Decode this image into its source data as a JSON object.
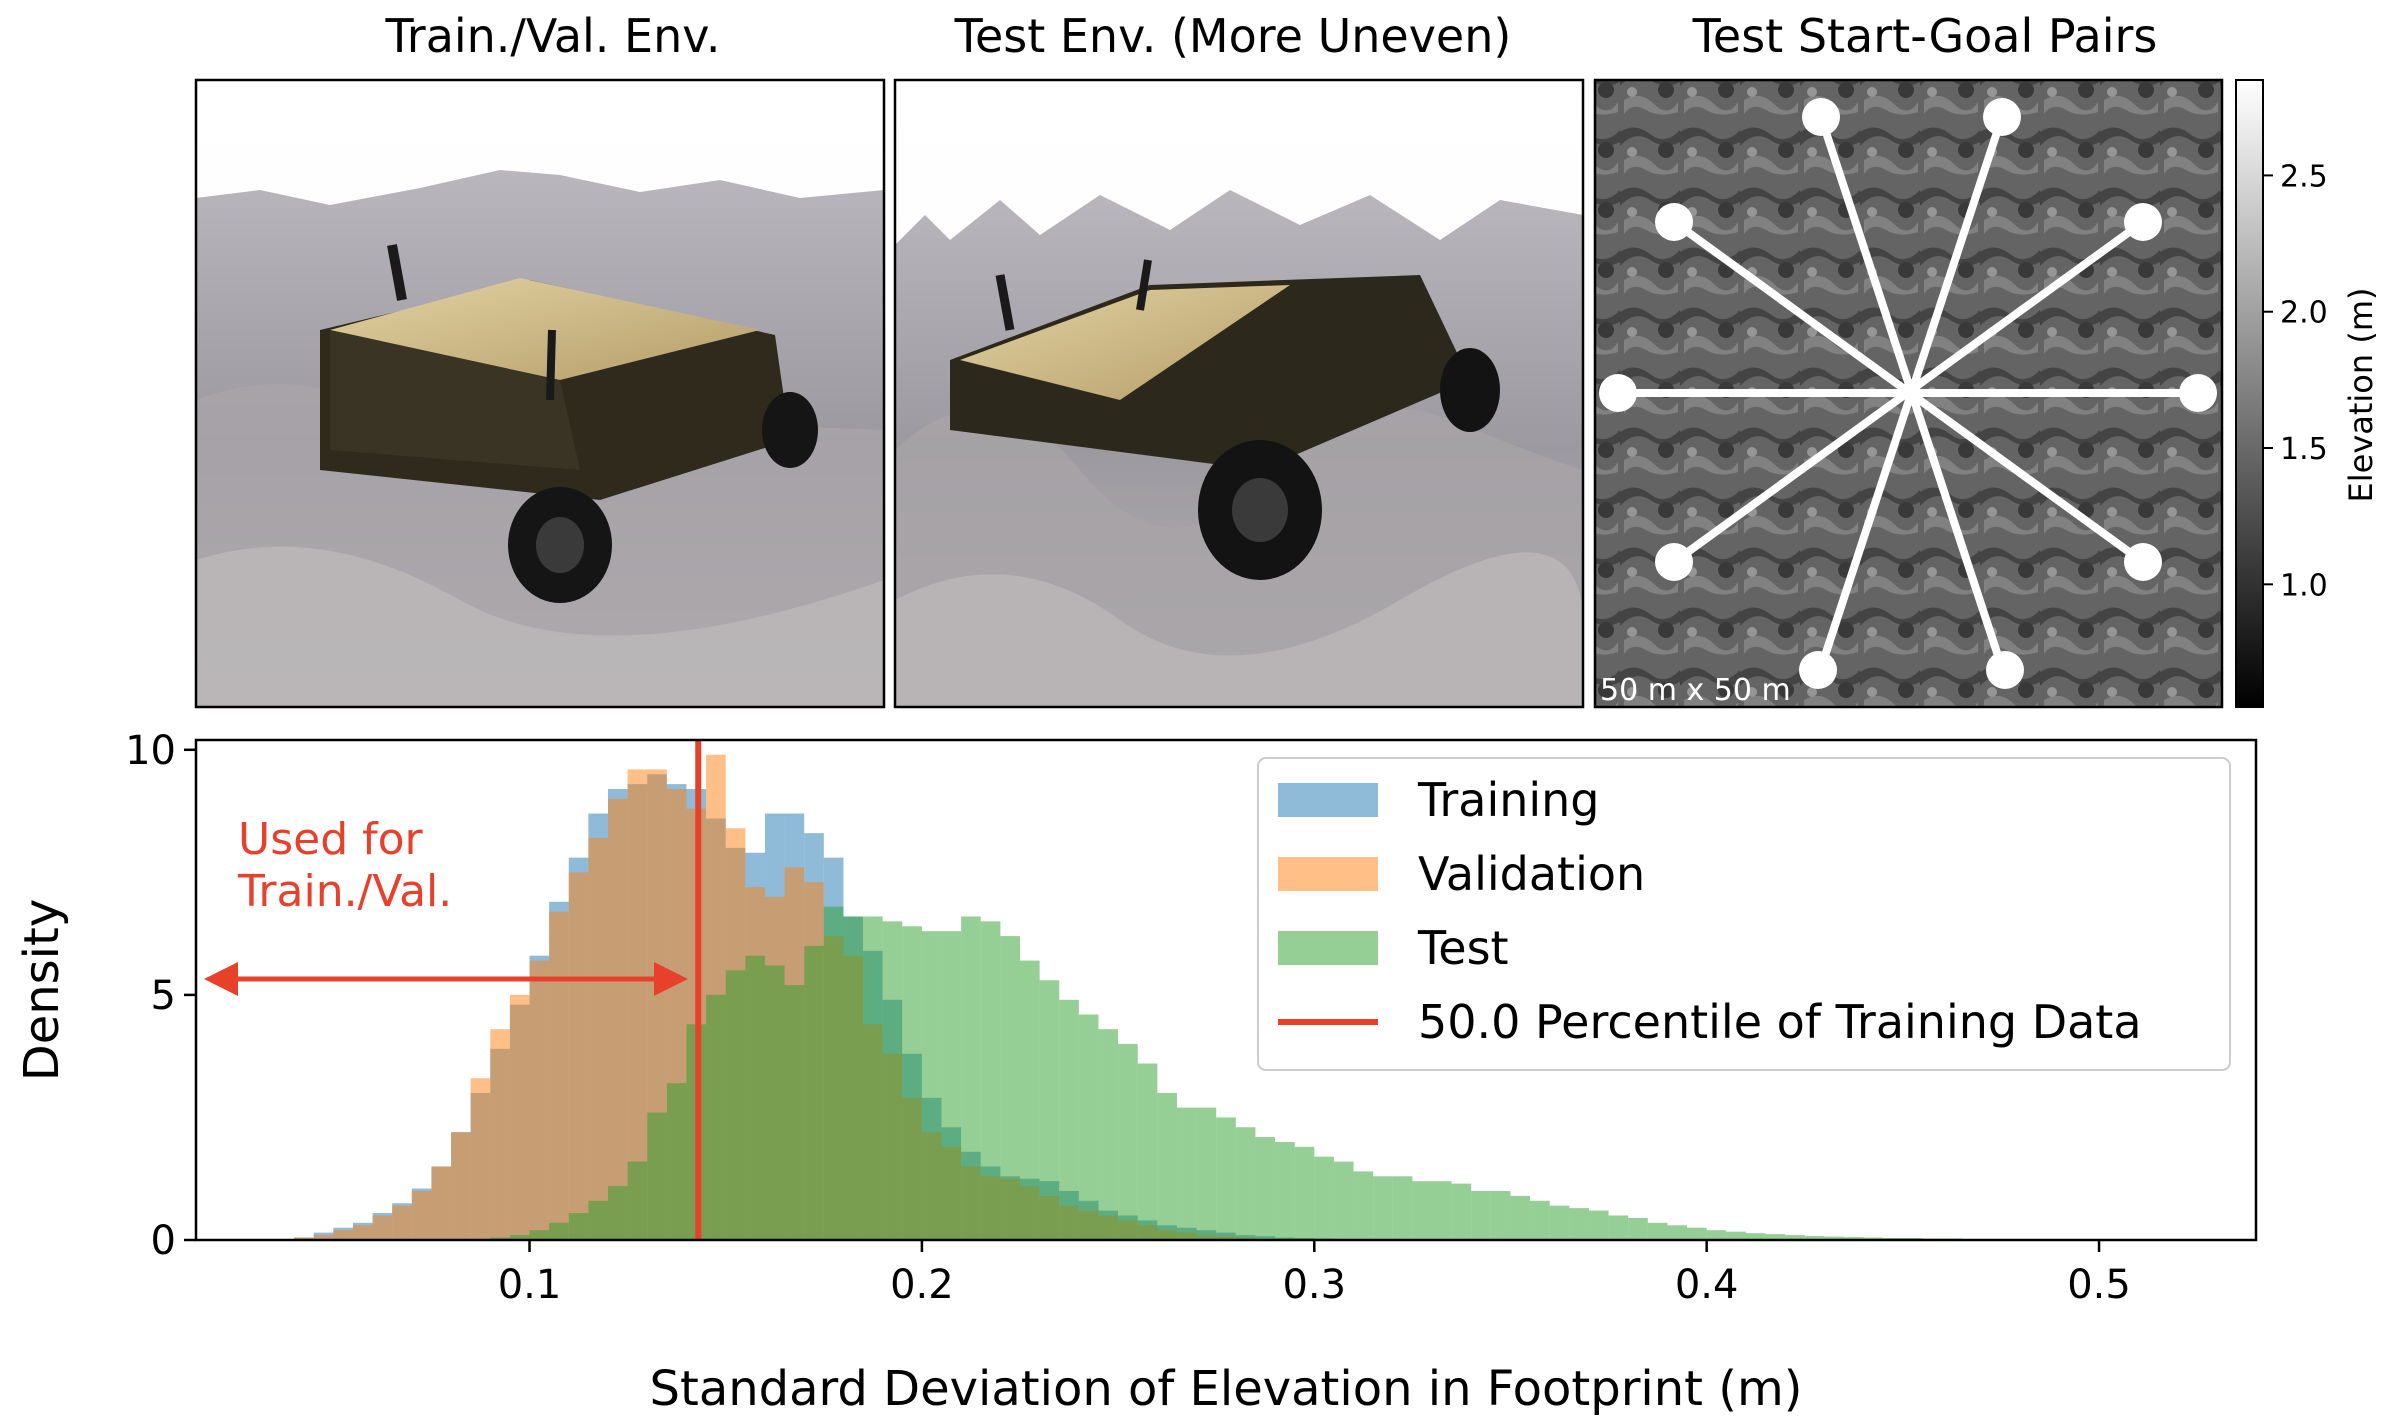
{
  "panels": {
    "train_env_title": "Train./Val. Env.",
    "test_env_title": "Test Env. (More Uneven)",
    "pairs_title": "Test Start-Goal Pairs",
    "map_scale_label": "50 m x 50 m",
    "colorbar_label": "Elevation (m)",
    "colorbar_ticks": [
      "1.0",
      "1.5",
      "2.0",
      "2.5"
    ],
    "colorbar_range": [
      0.55,
      2.85
    ]
  },
  "annotation": {
    "line1": "Used for",
    "line2": "Train./Val.",
    "color": "#e8412b"
  },
  "chart_data": {
    "type": "bar",
    "xlabel": "Standard Deviation of Elevation in Footprint (m)",
    "ylabel": "Density",
    "xlim": [
      0.015,
      0.54
    ],
    "ylim": [
      0,
      10.2
    ],
    "xticks": [
      "0.1",
      "0.2",
      "0.3",
      "0.4",
      "0.5"
    ],
    "yticks": [
      "0",
      "5",
      "10"
    ],
    "bin_width": 0.005,
    "legend_position": "upper right",
    "percentile_line": {
      "name": "50.0 Percentile of Training Data",
      "x": 0.143,
      "color": "#e8412b"
    },
    "series": [
      {
        "name": "Training",
        "color": "#1f77b4",
        "x_start": 0.04,
        "values": [
          0.05,
          0.15,
          0.25,
          0.35,
          0.55,
          0.75,
          1.05,
          1.5,
          2.2,
          3.0,
          3.9,
          4.8,
          5.8,
          6.9,
          7.8,
          8.7,
          9.2,
          9.3,
          9.5,
          9.3,
          9.2,
          8.6,
          8.0,
          7.9,
          8.7,
          8.7,
          8.3,
          7.8,
          6.6,
          5.9,
          4.9,
          3.8,
          2.9,
          2.3,
          1.8,
          1.5,
          1.3,
          1.25,
          1.2,
          1.0,
          0.8,
          0.6,
          0.5,
          0.4,
          0.3,
          0.25,
          0.2,
          0.15,
          0.1,
          0.08,
          0.05,
          0.04,
          0.03,
          0.02,
          0.01,
          0.01
        ]
      },
      {
        "name": "Validation",
        "color": "#ff7f0e",
        "x_start": 0.04,
        "values": [
          0.05,
          0.1,
          0.2,
          0.3,
          0.5,
          0.7,
          1.0,
          1.5,
          2.2,
          3.3,
          4.3,
          5.0,
          5.7,
          6.7,
          7.5,
          8.2,
          9.0,
          9.6,
          9.6,
          9.2,
          8.8,
          9.9,
          8.4,
          7.2,
          7.0,
          7.6,
          7.3,
          6.2,
          5.8,
          4.4,
          3.8,
          2.9,
          2.2,
          1.9,
          1.5,
          1.3,
          1.25,
          1.1,
          0.9,
          0.7,
          0.6,
          0.5,
          0.4,
          0.3,
          0.2,
          0.15,
          0.1,
          0.08,
          0.05,
          0.03,
          0.02,
          0.01,
          0.01
        ]
      },
      {
        "name": "Test",
        "color": "#2ca02c",
        "x_start": 0.09,
        "values": [
          0.05,
          0.1,
          0.2,
          0.35,
          0.55,
          0.8,
          1.1,
          1.6,
          2.6,
          3.2,
          4.4,
          5.0,
          5.5,
          5.8,
          5.6,
          5.2,
          6.0,
          6.8,
          6.6,
          6.6,
          6.5,
          6.4,
          6.3,
          6.3,
          6.6,
          6.5,
          6.2,
          5.7,
          5.3,
          4.9,
          4.6,
          4.3,
          4.0,
          3.6,
          3.0,
          2.7,
          2.7,
          2.5,
          2.3,
          2.1,
          2.0,
          1.9,
          1.7,
          1.6,
          1.4,
          1.3,
          1.3,
          1.2,
          1.2,
          1.15,
          1.0,
          1.0,
          0.9,
          0.8,
          0.7,
          0.65,
          0.6,
          0.5,
          0.45,
          0.35,
          0.3,
          0.25,
          0.2,
          0.17,
          0.14,
          0.12,
          0.1,
          0.08,
          0.07,
          0.06,
          0.05,
          0.04,
          0.04,
          0.03,
          0.03,
          0.02,
          0.02,
          0.02,
          0.01,
          0.01,
          0.01,
          0.01,
          0.01,
          0.01,
          0.01,
          0.01
        ]
      }
    ]
  }
}
